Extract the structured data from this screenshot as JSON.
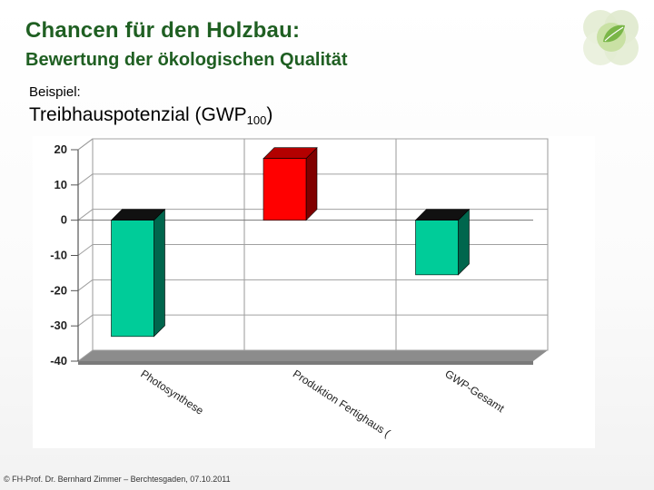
{
  "slide": {
    "title": "Chancen für den Holzbau:",
    "subtitle": "Bewertung der ökologischen Qualität",
    "example_label": "Beispiel:",
    "measure_label": "Treibhauspotenzial  (GWP",
    "measure_subscript": "100",
    "measure_suffix": ")",
    "footer": "© FH-Prof. Dr. Bernhard Zimmer  –  Berchtesgaden, 07.10.2011"
  },
  "logo": {
    "icon": "leaf-circle-icon",
    "colors": [
      "#8dc63f",
      "#c9e3a6",
      "#e6eed8"
    ]
  },
  "chart_data": {
    "type": "bar",
    "categories": [
      "Photosynthese",
      "Produktion Fertighaus (",
      "GWP-Gesamt"
    ],
    "values": [
      -33,
      17.5,
      -15.5
    ],
    "colors": [
      "#00cc99",
      "#ff0000",
      "#00cc99"
    ],
    "ylim": [
      -40,
      20
    ],
    "yticks": [
      20,
      10,
      0,
      -10,
      -20,
      -30,
      -40
    ],
    "grid": true,
    "legend": "none",
    "three_d": true
  }
}
